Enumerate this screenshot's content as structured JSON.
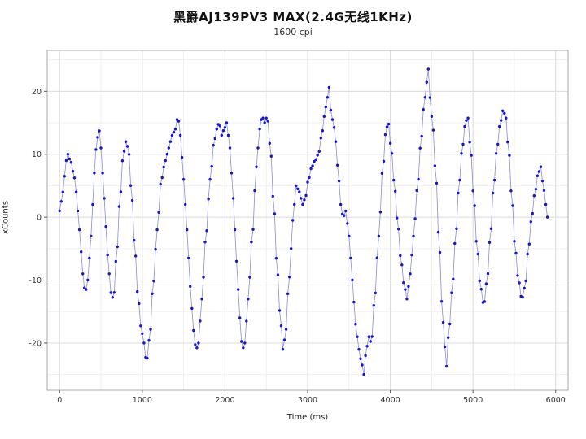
{
  "chart_data": {
    "type": "scatter",
    "title": "黑爵AJ139PV3  MAX(2.4G无线1KHz)",
    "subtitle": "1600 cpi",
    "xlabel": "Time (ms)",
    "ylabel": "xCounts",
    "xlim": [
      -150,
      6150
    ],
    "ylim": [
      -27.5,
      26.5
    ],
    "xticks": [
      0,
      1000,
      2000,
      3000,
      4000,
      5000,
      6000
    ],
    "yticks": [
      -20,
      -10,
      0,
      10,
      20
    ],
    "x_minor_step": 500,
    "y_minor_step": 5,
    "x_start": 0,
    "x_end": 5900,
    "sample_step_ms": 20,
    "point_color": "#1515cf",
    "line_color": "#8a8ad8",
    "grid_major_color": "#dcdcdc",
    "grid_minor_color": "#f0f0f0",
    "border_color": "#a8a8a8",
    "tick_color": "#555555",
    "tick_label_color": "#333333",
    "keypoints": [
      [
        0,
        1
      ],
      [
        40,
        4
      ],
      [
        80,
        9
      ],
      [
        100,
        10
      ],
      [
        130,
        9
      ],
      [
        170,
        7
      ],
      [
        200,
        4
      ],
      [
        240,
        -2
      ],
      [
        280,
        -9
      ],
      [
        310,
        -12
      ],
      [
        340,
        -10
      ],
      [
        380,
        -3
      ],
      [
        420,
        7
      ],
      [
        450,
        12
      ],
      [
        475,
        14
      ],
      [
        500,
        11
      ],
      [
        540,
        3
      ],
      [
        580,
        -6
      ],
      [
        620,
        -12
      ],
      [
        650,
        -13
      ],
      [
        690,
        -6
      ],
      [
        730,
        3
      ],
      [
        770,
        10
      ],
      [
        800,
        12
      ],
      [
        830,
        11
      ],
      [
        870,
        4
      ],
      [
        910,
        -5
      ],
      [
        950,
        -13
      ],
      [
        990,
        -18
      ],
      [
        1020,
        -20
      ],
      [
        1050,
        -23
      ],
      [
        1090,
        -19
      ],
      [
        1130,
        -11
      ],
      [
        1180,
        -2
      ],
      [
        1230,
        6
      ],
      [
        1280,
        9
      ],
      [
        1320,
        11
      ],
      [
        1360,
        13
      ],
      [
        1400,
        14
      ],
      [
        1430,
        16
      ],
      [
        1460,
        13
      ],
      [
        1500,
        6
      ],
      [
        1540,
        -2
      ],
      [
        1580,
        -11
      ],
      [
        1620,
        -18
      ],
      [
        1650,
        -21
      ],
      [
        1680,
        -20
      ],
      [
        1720,
        -13
      ],
      [
        1770,
        -3
      ],
      [
        1820,
        6
      ],
      [
        1870,
        12
      ],
      [
        1900,
        14
      ],
      [
        1930,
        15
      ],
      [
        1960,
        13
      ],
      [
        1990,
        14
      ],
      [
        2020,
        15
      ],
      [
        2060,
        11
      ],
      [
        2100,
        3
      ],
      [
        2140,
        -7
      ],
      [
        2180,
        -16
      ],
      [
        2210,
        -21
      ],
      [
        2240,
        -20
      ],
      [
        2280,
        -13
      ],
      [
        2330,
        -3
      ],
      [
        2380,
        8
      ],
      [
        2420,
        14
      ],
      [
        2450,
        16
      ],
      [
        2480,
        15
      ],
      [
        2510,
        16
      ],
      [
        2550,
        11
      ],
      [
        2590,
        2
      ],
      [
        2630,
        -8
      ],
      [
        2670,
        -16
      ],
      [
        2700,
        -21
      ],
      [
        2730,
        -19
      ],
      [
        2770,
        -11
      ],
      [
        2800,
        -5
      ],
      [
        2830,
        1
      ],
      [
        2860,
        5
      ],
      [
        2900,
        4
      ],
      [
        2940,
        2
      ],
      [
        2970,
        3
      ],
      [
        3010,
        6
      ],
      [
        3050,
        8
      ],
      [
        3090,
        9
      ],
      [
        3130,
        10
      ],
      [
        3170,
        13
      ],
      [
        3200,
        16
      ],
      [
        3230,
        18
      ],
      [
        3255,
        21
      ],
      [
        3280,
        17
      ],
      [
        3310,
        15
      ],
      [
        3340,
        12
      ],
      [
        3370,
        7
      ],
      [
        3400,
        2
      ],
      [
        3430,
        0
      ],
      [
        3460,
        1
      ],
      [
        3500,
        -3
      ],
      [
        3540,
        -10
      ],
      [
        3580,
        -17
      ],
      [
        3620,
        -21
      ],
      [
        3650,
        -23
      ],
      [
        3680,
        -25
      ],
      [
        3710,
        -21
      ],
      [
        3740,
        -19
      ],
      [
        3770,
        -20
      ],
      [
        3810,
        -13
      ],
      [
        3860,
        -3
      ],
      [
        3910,
        8
      ],
      [
        3950,
        14
      ],
      [
        3975,
        15
      ],
      [
        4010,
        11
      ],
      [
        4050,
        5
      ],
      [
        4090,
        -1
      ],
      [
        4130,
        -7
      ],
      [
        4170,
        -11
      ],
      [
        4200,
        -13
      ],
      [
        4240,
        -9
      ],
      [
        4280,
        -3
      ],
      [
        4330,
        5
      ],
      [
        4370,
        12
      ],
      [
        4410,
        18
      ],
      [
        4435,
        21
      ],
      [
        4455,
        24
      ],
      [
        4480,
        19
      ],
      [
        4510,
        15
      ],
      [
        4550,
        7
      ],
      [
        4590,
        -4
      ],
      [
        4630,
        -15
      ],
      [
        4655,
        -20
      ],
      [
        4675,
        -24
      ],
      [
        4710,
        -18
      ],
      [
        4750,
        -11
      ],
      [
        4790,
        -3
      ],
      [
        4830,
        5
      ],
      [
        4870,
        11
      ],
      [
        4910,
        15
      ],
      [
        4935,
        16
      ],
      [
        4970,
        11
      ],
      [
        5010,
        3
      ],
      [
        5050,
        -5
      ],
      [
        5090,
        -11
      ],
      [
        5130,
        -14
      ],
      [
        5170,
        -10
      ],
      [
        5210,
        -3
      ],
      [
        5250,
        5
      ],
      [
        5290,
        11
      ],
      [
        5330,
        15
      ],
      [
        5365,
        17
      ],
      [
        5395,
        16
      ],
      [
        5430,
        11
      ],
      [
        5470,
        3
      ],
      [
        5510,
        -5
      ],
      [
        5550,
        -10
      ],
      [
        5590,
        -13
      ],
      [
        5630,
        -11
      ],
      [
        5670,
        -5
      ],
      [
        5710,
        0
      ],
      [
        5750,
        4
      ],
      [
        5790,
        7
      ],
      [
        5820,
        8
      ],
      [
        5850,
        5
      ],
      [
        5880,
        2
      ],
      [
        5900,
        0
      ]
    ]
  }
}
